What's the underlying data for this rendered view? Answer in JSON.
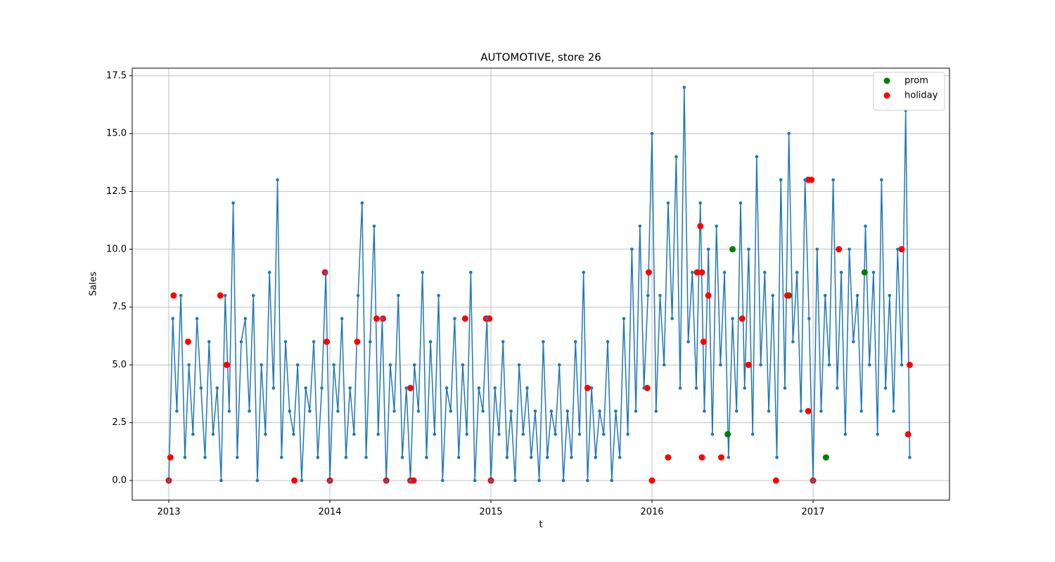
{
  "chart_data": {
    "type": "line",
    "title": "AUTOMOTIVE, store 26",
    "x_label": "t",
    "y_label": "Sales",
    "color": "#1f77b4",
    "x": [
      2013,
      2013.025,
      2013.05,
      2013.075,
      2013.1,
      2013.125,
      2013.15,
      2013.175,
      2013.2,
      2013.225,
      2013.25,
      2013.275,
      2013.3,
      2013.325,
      2013.35,
      2013.375,
      2013.4,
      2013.425,
      2013.45,
      2013.475,
      2013.5,
      2013.525,
      2013.55,
      2013.575,
      2013.6,
      2013.625,
      2013.65,
      2013.675,
      2013.7,
      2013.725,
      2013.75,
      2013.775,
      2013.8,
      2013.825,
      2013.85,
      2013.875,
      2013.9,
      2013.925,
      2013.95,
      2013.975,
      2014,
      2014.025,
      2014.05,
      2014.075,
      2014.1,
      2014.125,
      2014.15,
      2014.175,
      2014.2,
      2014.225,
      2014.25,
      2014.275,
      2014.3,
      2014.325,
      2014.35,
      2014.375,
      2014.4,
      2014.425,
      2014.45,
      2014.475,
      2014.5,
      2014.525,
      2014.55,
      2014.575,
      2014.6,
      2014.625,
      2014.65,
      2014.675,
      2014.7,
      2014.725,
      2014.75,
      2014.775,
      2014.8,
      2014.825,
      2014.85,
      2014.875,
      2014.9,
      2014.925,
      2014.95,
      2014.975,
      2015,
      2015.025,
      2015.05,
      2015.075,
      2015.1,
      2015.125,
      2015.15,
      2015.175,
      2015.2,
      2015.225,
      2015.25,
      2015.275,
      2015.3,
      2015.325,
      2015.35,
      2015.375,
      2015.4,
      2015.425,
      2015.45,
      2015.475,
      2015.5,
      2015.525,
      2015.55,
      2015.575,
      2015.6,
      2015.625,
      2015.65,
      2015.675,
      2015.7,
      2015.725,
      2015.75,
      2015.775,
      2015.8,
      2015.825,
      2015.85,
      2015.875,
      2015.9,
      2015.925,
      2015.95,
      2015.975,
      2016,
      2016.025,
      2016.05,
      2016.075,
      2016.1,
      2016.125,
      2016.15,
      2016.175,
      2016.2,
      2016.225,
      2016.25,
      2016.275,
      2016.3,
      2016.325,
      2016.35,
      2016.375,
      2016.4,
      2016.425,
      2016.45,
      2016.475,
      2016.5,
      2016.525,
      2016.55,
      2016.575,
      2016.6,
      2016.625,
      2016.65,
      2016.675,
      2016.7,
      2016.725,
      2016.75,
      2016.775,
      2016.8,
      2016.825,
      2016.85,
      2016.875,
      2016.9,
      2016.925,
      2016.95,
      2016.975,
      2017,
      2017.025,
      2017.05,
      2017.075,
      2017.1,
      2017.125,
      2017.15,
      2017.175,
      2017.2,
      2017.225,
      2017.25,
      2017.275,
      2017.3,
      2017.325,
      2017.35,
      2017.375,
      2017.4,
      2017.425,
      2017.45,
      2017.475,
      2017.5,
      2017.525,
      2017.55,
      2017.575,
      2017.6
    ],
    "values": [
      0,
      7,
      3,
      8,
      1,
      5,
      2,
      7,
      4,
      1,
      6,
      2,
      4,
      0,
      8,
      3,
      12,
      1,
      6,
      7,
      3,
      8,
      0,
      5,
      2,
      9,
      4,
      13,
      1,
      6,
      3,
      2,
      5,
      0,
      4,
      3,
      6,
      1,
      4,
      9,
      0,
      5,
      3,
      7,
      1,
      4,
      2,
      8,
      12,
      1,
      6,
      11,
      2,
      7,
      0,
      5,
      3,
      8,
      1,
      4,
      0,
      5,
      3,
      9,
      1,
      6,
      2,
      8,
      0,
      4,
      3,
      7,
      1,
      5,
      2,
      9,
      0,
      4,
      3,
      7,
      0,
      4,
      2,
      6,
      1,
      3,
      0,
      5,
      2,
      4,
      1,
      3,
      0,
      6,
      1,
      3,
      2,
      5,
      0,
      3,
      1,
      6,
      2,
      9,
      0,
      4,
      1,
      3,
      2,
      6,
      0,
      3,
      1,
      7,
      2,
      10,
      3,
      11,
      4,
      8,
      15,
      3,
      8,
      5,
      12,
      7,
      14,
      4,
      17,
      6,
      9,
      4,
      12,
      3,
      10,
      2,
      11,
      5,
      9,
      1,
      7,
      3,
      12,
      4,
      10,
      2,
      14,
      5,
      9,
      3,
      8,
      1,
      13,
      4,
      15,
      6,
      9,
      3,
      13,
      7,
      0,
      10,
      3,
      8,
      5,
      13,
      4,
      9,
      2,
      10,
      6,
      8,
      3,
      11,
      5,
      9,
      2,
      13,
      4,
      8,
      3,
      10,
      5,
      16,
      1
    ],
    "scatter_series": [
      {
        "name": "prom",
        "color": "#008000",
        "x": [
          2016.47,
          2016.5,
          2016.85,
          2017.08,
          2017.32
        ],
        "values": [
          2,
          10,
          8,
          1,
          9
        ]
      },
      {
        "name": "holiday",
        "color": "#ff0000",
        "x": [
          2013.0,
          2013.01,
          2013.03,
          2013.12,
          2013.32,
          2013.36,
          2013.78,
          2013.97,
          2013.98,
          2014.0,
          2014.17,
          2014.29,
          2014.33,
          2014.35,
          2014.5,
          2014.5,
          2014.52,
          2014.84,
          2014.97,
          2014.99,
          2015.0,
          2015.6,
          2015.97,
          2015.98,
          2016.0,
          2016.1,
          2016.28,
          2016.3,
          2016.31,
          2016.31,
          2016.32,
          2016.35,
          2016.43,
          2016.56,
          2016.6,
          2016.77,
          2016.84,
          2016.97,
          2016.97,
          2016.99,
          2017.0,
          2017.16,
          2017.55,
          2017.59,
          2017.6
        ],
        "values": [
          0,
          1,
          8,
          6,
          8,
          5,
          0,
          9,
          6,
          0,
          6,
          7,
          7,
          0,
          4,
          0,
          0,
          7,
          7,
          7,
          0,
          4,
          4,
          9,
          0,
          1,
          9,
          11,
          9,
          1,
          6,
          8,
          1,
          7,
          5,
          0,
          8,
          13,
          3,
          13,
          0,
          10,
          10,
          2,
          5
        ]
      }
    ],
    "xlim": [
      2012.773,
      2017.847
    ],
    "ylim": [
      -0.85,
      17.83
    ],
    "xticks": [
      2013,
      2014,
      2015,
      2016,
      2017
    ],
    "yticks": [
      {
        "value": 0,
        "label": "0.0"
      },
      2.5,
      {
        "value": 5,
        "label": "5.0"
      },
      7.5,
      {
        "value": 10,
        "label": "10.0"
      },
      12.5,
      {
        "value": 15,
        "label": "15.0"
      },
      17.5
    ],
    "grid": true,
    "legend_position": "upper right"
  }
}
